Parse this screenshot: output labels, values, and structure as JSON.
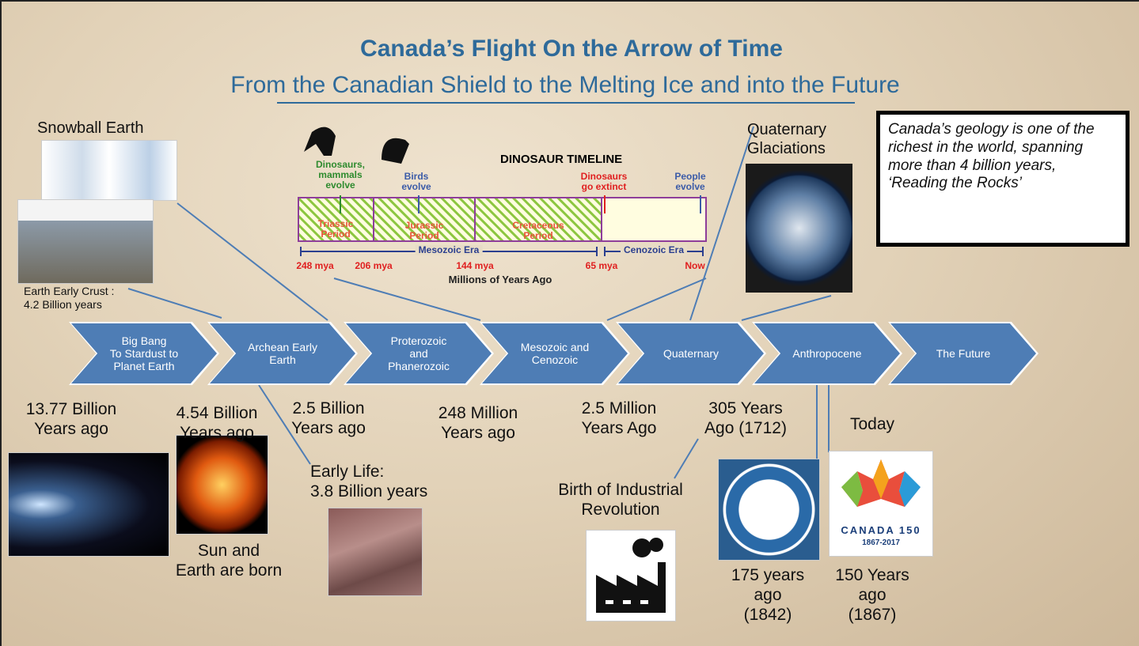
{
  "header": {
    "title": "Canada’s Flight On the Arrow of Time",
    "subtitle": "From the Canadian Shield to the Melting Ice and into the Future"
  },
  "callout": "Canada’s geology is one of the richest in the world, spanning more than 4 billion years, ‘Reading the Rocks’",
  "arrows": [
    "Big Bang\nTo Stardust to\nPlanet Earth",
    "Archean Early\nEarth",
    "Proterozoic\nand\nPhanerozoic",
    "Mesozoic and\nCenozoic",
    "Quaternary",
    "Anthropocene",
    "The Future"
  ],
  "dates": [
    "13.77 Billion\nYears ago",
    "4.54 Billion\nYears ago",
    "2.5 Billion\nYears ago",
    "248 Million\nYears ago",
    "2.5 Million\nYears Ago",
    "305 Years\nAgo (1712)",
    "Today"
  ],
  "notes": {
    "snowball": "Snowball Earth",
    "crust": "Earth Early Crust :\n4.2 Billion years",
    "sun": "Sun and\nEarth are born",
    "life": "Early Life:\n3.8 Billion years",
    "industrial": "Birth of Industrial\nRevolution",
    "gsc": "175 years\nago\n(1842)",
    "canada150": "150 Years\nago\n(1867)",
    "glaciations": "Quaternary\nGlaciations"
  },
  "logo150": {
    "name": "CANADA 150",
    "years": "1867-2017"
  },
  "dinosaur_timeline": {
    "title": "DINOSAUR TIMELINE",
    "events": [
      "Dinosaurs,\nmammals\nevolve",
      "Birds\nevolve",
      "Dinosaurs\ngo extinct",
      "People\nevolve"
    ],
    "periods": [
      "Triassic\nPeriod",
      "Jurassic\nPeriod",
      "Cretaceous\nPeriod"
    ],
    "eras": [
      "Mesozoic Era",
      "Cenozoic Era"
    ],
    "ticks": [
      "248 mya",
      "206 mya",
      "144 mya",
      "65 mya",
      "Now"
    ],
    "axis_label": "Millions of Years Ago"
  }
}
